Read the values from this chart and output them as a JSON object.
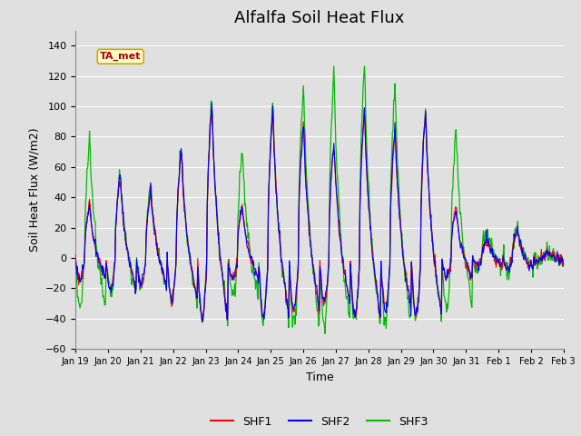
{
  "title": "Alfalfa Soil Heat Flux",
  "xlabel": "Time",
  "ylabel": "Soil Heat Flux (W/m2)",
  "ylim": [
    -60,
    150
  ],
  "yticks": [
    -60,
    -40,
    -20,
    0,
    20,
    40,
    60,
    80,
    100,
    120,
    140
  ],
  "xtick_labels": [
    "Jan 19",
    "Jan 20",
    "Jan 21",
    "Jan 22",
    "Jan 23",
    "Jan 24",
    "Jan 25",
    "Jan 26",
    "Jan 27",
    "Jan 28",
    "Jan 29",
    "Jan 30",
    "Jan 31",
    "Feb 1",
    "Feb 2",
    "Feb 3"
  ],
  "legend_labels": [
    "SHF1",
    "SHF2",
    "SHF3"
  ],
  "line_colors": [
    "#ff0000",
    "#0000ff",
    "#00bb00"
  ],
  "shf3_line_color": "#00ee00",
  "annotation_text": "TA_met",
  "annotation_color": "#aa0000",
  "annotation_bg": "#ffffcc",
  "annotation_border": "#ccaa00",
  "bg_color": "#e0e0e0",
  "grid_color": "#ffffff",
  "title_fontsize": 13,
  "ylabel_fontsize": 9,
  "xlabel_fontsize": 9,
  "tick_fontsize": 8
}
